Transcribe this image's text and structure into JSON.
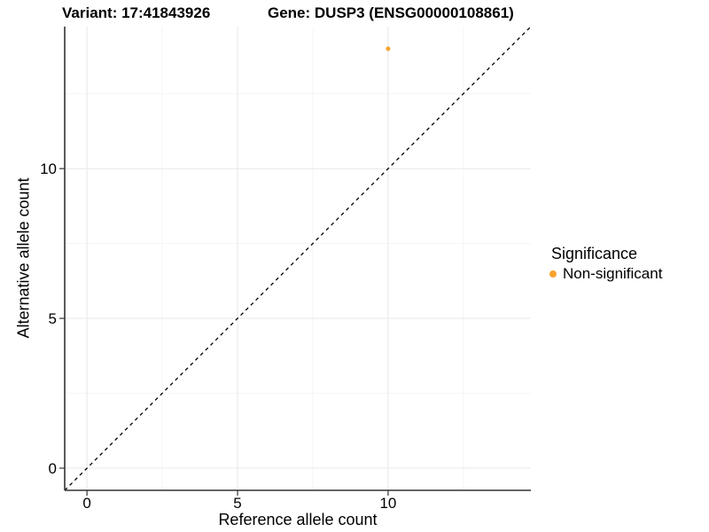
{
  "chart_data": {
    "type": "scatter",
    "titles": {
      "variant": "Variant: 17:41843926",
      "gene": "Gene: DUSP3 (ENSG00000108861)"
    },
    "xlabel": "Reference allele count",
    "ylabel": "Alternative allele count",
    "xlim": [
      -0.74,
      14.74
    ],
    "ylim": [
      -0.74,
      14.74
    ],
    "xticks": [
      0,
      5,
      10
    ],
    "yticks": [
      0,
      5,
      10
    ],
    "xminor": [
      2.5,
      7.5,
      12.5
    ],
    "yminor": [
      2.5,
      7.5,
      12.5
    ],
    "grid": true,
    "legend_position": "right",
    "series": [
      {
        "name": "Non-significant",
        "color": "#F9A22E",
        "points": [
          {
            "x": 10,
            "y": 14
          }
        ]
      }
    ],
    "reference_line": {
      "type": "identity",
      "slope": 1,
      "intercept": 0,
      "style": "dashed",
      "color": "#000000"
    },
    "legend": {
      "title": "Significance",
      "items": [
        {
          "label": "Non-significant",
          "color": "#F9A22E"
        }
      ]
    },
    "colors": {
      "point_nonsignificant": "#F9A22E",
      "axis_line": "#333333",
      "tick_mark": "#333333",
      "grid_major": "#EAEAEA",
      "grid_minor": "#F4F4F4",
      "reference_line": "#000000",
      "text": "#000000",
      "background": "#FFFFFF"
    }
  }
}
